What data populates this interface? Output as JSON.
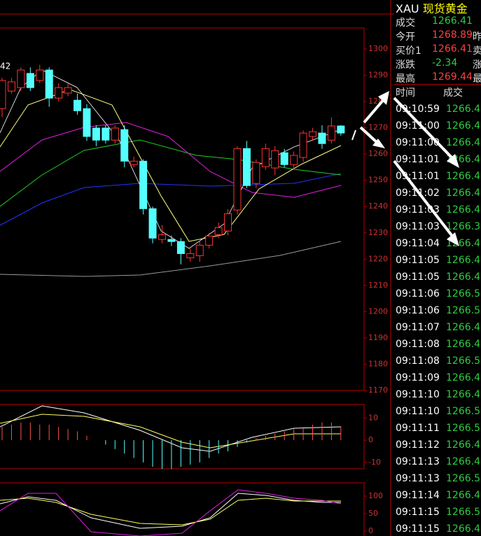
{
  "header": {
    "symbol": "XAU",
    "name": "现货黄金"
  },
  "quote": {
    "rows": [
      [
        "成交",
        "1266.41",
        ""
      ],
      [
        "今开",
        "1268.89",
        "昨"
      ],
      [
        "买价1",
        "1266.41",
        "卖"
      ],
      [
        "涨跌",
        "-2.34",
        "涨"
      ],
      [
        "最高",
        "1269.44",
        "最"
      ]
    ]
  },
  "ticks_header": [
    "时间",
    "成交"
  ],
  "ticks": [
    [
      "09:10:59",
      "1266.4"
    ],
    [
      "09:11:00",
      "1266.4"
    ],
    [
      "09:11:00",
      "1266.4"
    ],
    [
      "09:11:01",
      "1266.4"
    ],
    [
      "09:11:01",
      "1266.4"
    ],
    [
      "09:11:02",
      "1266.4"
    ],
    [
      "09:11:03",
      "1266.4"
    ],
    [
      "09:11:03",
      "1266.3"
    ],
    [
      "09:11:04",
      "1266.4"
    ],
    [
      "09:11:05",
      "1266.4"
    ],
    [
      "09:11:05",
      "1266.4"
    ],
    [
      "09:11:06",
      "1266.5"
    ],
    [
      "09:11:06",
      "1266.5"
    ],
    [
      "09:11:07",
      "1266.4"
    ],
    [
      "09:11:08",
      "1266.4"
    ],
    [
      "09:11:08",
      "1266.5"
    ],
    [
      "09:11:09",
      "1266.4"
    ],
    [
      "09:11:10",
      "1266.4"
    ],
    [
      "09:11:10",
      "1266.5"
    ],
    [
      "09:11:11",
      "1266.5"
    ],
    [
      "09:11:12",
      "1266.4"
    ],
    [
      "09:11:13",
      "1266.4"
    ],
    [
      "09:11:13",
      "1266.5"
    ],
    [
      "09:11:14",
      "1266.4"
    ],
    [
      "09:11:15",
      "1266.5"
    ],
    [
      "09:11:15",
      "1266.4"
    ]
  ],
  "chart": {
    "label": "42",
    "ylim": [
      1170,
      1308
    ],
    "yticks": [
      1170,
      1180,
      1190,
      1200,
      1210,
      1220,
      1230,
      1240,
      1250,
      1260,
      1270,
      1280,
      1290,
      1300
    ],
    "candles": [
      [
        1277.3,
        1289,
        1274,
        1288
      ],
      [
        1284,
        1289,
        1283,
        1287.5
      ],
      [
        1285.3,
        1293,
        1284,
        1292
      ],
      [
        1290.7,
        1293,
        1284,
        1285.3
      ],
      [
        1288,
        1294,
        1287,
        1292
      ],
      [
        1292,
        1293,
        1278,
        1281.3
      ],
      [
        1281.3,
        1287,
        1280,
        1285.3
      ],
      [
        1283.2,
        1287,
        1282,
        1285.3
      ],
      [
        1280.5,
        1283,
        1275,
        1276.5
      ],
      [
        1277.3,
        1279,
        1265,
        1266.7
      ],
      [
        1269.9,
        1271,
        1263,
        1265.3
      ],
      [
        1269.9,
        1271,
        1264,
        1265.3
      ],
      [
        1265.3,
        1271,
        1264,
        1269.9
      ],
      [
        1269.3,
        1271,
        1255,
        1257.3
      ],
      [
        1256,
        1259,
        1255,
        1257.3
      ],
      [
        1257.3,
        1258,
        1237,
        1239.2
      ],
      [
        1239.2,
        1240,
        1226,
        1228
      ],
      [
        1227.5,
        1233,
        1226,
        1229.3
      ],
      [
        1227.5,
        1229,
        1225,
        1226.7
      ],
      [
        1226.7,
        1228,
        1218,
        1222.1
      ],
      [
        1220.5,
        1224,
        1219,
        1222.1
      ],
      [
        1221.3,
        1227,
        1219,
        1225.3
      ],
      [
        1225.3,
        1230,
        1224,
        1228.8
      ],
      [
        1229.3,
        1234,
        1228,
        1232
      ],
      [
        1230.7,
        1239,
        1229,
        1237.3
      ],
      [
        1238.7,
        1263,
        1237,
        1262.1
      ],
      [
        1262.1,
        1265,
        1247,
        1248
      ],
      [
        1248.8,
        1258,
        1247,
        1256.8
      ],
      [
        1255.2,
        1264,
        1254,
        1262.1
      ],
      [
        1254.7,
        1263,
        1252,
        1261.3
      ],
      [
        1260.5,
        1262,
        1255,
        1256
      ],
      [
        1256,
        1261,
        1254,
        1259.5
      ],
      [
        1258.7,
        1269,
        1257,
        1268
      ],
      [
        1266.7,
        1270,
        1265,
        1268.5
      ],
      [
        1268,
        1271,
        1262,
        1264
      ],
      [
        1265.3,
        1274,
        1264,
        1270.7
      ],
      [
        1270.7,
        1271,
        1267,
        1268
      ]
    ],
    "macd": {
      "ylim": [
        -12.9,
        16.1
      ],
      "yticks": [
        10,
        0,
        -10
      ],
      "values": [
        6,
        7,
        8,
        8,
        7,
        7,
        6,
        5,
        4,
        2,
        0,
        -2,
        -4,
        -6,
        -8,
        -10,
        -12,
        -13,
        -13,
        -12,
        -11,
        -10,
        -8,
        -6,
        -5,
        -3,
        -1,
        1,
        2,
        3,
        4,
        5,
        6,
        7,
        8,
        8,
        6
      ]
    },
    "kdj": {
      "ylim": [
        -14,
        138
      ],
      "yticks": [
        100,
        50,
        0
      ]
    }
  }
}
